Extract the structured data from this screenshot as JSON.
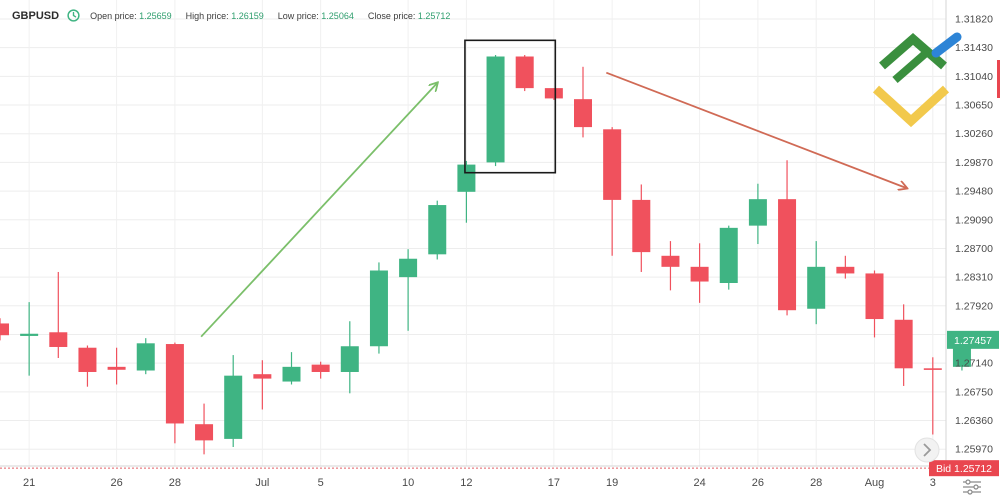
{
  "header": {
    "symbol": "GBPUSD",
    "open_label": "Open price:",
    "open_value": "1.25659",
    "high_label": "High price:",
    "high_value": "1.26159",
    "low_label": "Low price:",
    "low_value": "1.25064",
    "close_label": "Close price:",
    "close_value": "1.25712"
  },
  "price_badges": {
    "current": "1.27457",
    "bid": "Bid 1.25712"
  },
  "icons": [
    "clock-icon",
    "brand-logo-icon",
    "scroll-right-icon",
    "settings-icon"
  ],
  "colors": {
    "up": "#3fb483",
    "down": "#f0515d",
    "pattern_box": "#1a1a1a",
    "up_arrow": "#7bbf6a",
    "down_arrow": "#d06a55",
    "bid_line": "#e35f66"
  },
  "chart_data": {
    "type": "candlestick",
    "title": "GBPUSD",
    "y_ticks": [
      1.3182,
      1.3143,
      1.3104,
      1.3065,
      1.3026,
      1.2987,
      1.2948,
      1.2909,
      1.287,
      1.2831,
      1.2792,
      1.2753,
      1.2714,
      1.2675,
      1.2636,
      1.2597
    ],
    "x_ticks": [
      "21",
      "26",
      "28",
      "Jul",
      "5",
      "10",
      "12",
      "17",
      "19",
      "24",
      "26",
      "28",
      "Aug",
      "3"
    ],
    "ylim": [
      1.2555,
      1.3205
    ],
    "grid": true,
    "candles": [
      {
        "o": 1.2768,
        "h": 1.2775,
        "l": 1.2745,
        "c": 1.2752
      },
      {
        "o": 1.2751,
        "h": 1.2797,
        "l": 1.2697,
        "c": 1.2754
      },
      {
        "o": 1.2756,
        "h": 1.2838,
        "l": 1.2721,
        "c": 1.2736
      },
      {
        "o": 1.2735,
        "h": 1.2738,
        "l": 1.2682,
        "c": 1.2702
      },
      {
        "o": 1.2709,
        "h": 1.2735,
        "l": 1.2685,
        "c": 1.2705
      },
      {
        "o": 1.2704,
        "h": 1.2748,
        "l": 1.2699,
        "c": 1.2741
      },
      {
        "o": 1.274,
        "h": 1.2742,
        "l": 1.2605,
        "c": 1.2632
      },
      {
        "o": 1.2631,
        "h": 1.2659,
        "l": 1.259,
        "c": 1.2609
      },
      {
        "o": 1.2611,
        "h": 1.2725,
        "l": 1.26,
        "c": 1.2697
      },
      {
        "o": 1.2699,
        "h": 1.2718,
        "l": 1.2651,
        "c": 1.2693
      },
      {
        "o": 1.2689,
        "h": 1.2729,
        "l": 1.2685,
        "c": 1.2709
      },
      {
        "o": 1.2712,
        "h": 1.2716,
        "l": 1.2693,
        "c": 1.2702
      },
      {
        "o": 1.2702,
        "h": 1.2771,
        "l": 1.2673,
        "c": 1.2737
      },
      {
        "o": 1.2737,
        "h": 1.2851,
        "l": 1.2727,
        "c": 1.284
      },
      {
        "o": 1.2831,
        "h": 1.2869,
        "l": 1.2758,
        "c": 1.2856
      },
      {
        "o": 1.2862,
        "h": 1.2935,
        "l": 1.2855,
        "c": 1.2929
      },
      {
        "o": 1.2947,
        "h": 1.2989,
        "l": 1.2905,
        "c": 1.2984
      },
      {
        "o": 1.2987,
        "h": 1.3133,
        "l": 1.2982,
        "c": 1.3131
      },
      {
        "o": 1.3131,
        "h": 1.3133,
        "l": 1.3084,
        "c": 1.3088
      },
      {
        "o": 1.3088,
        "h": 1.3088,
        "l": 1.3072,
        "c": 1.3074
      },
      {
        "o": 1.3073,
        "h": 1.3117,
        "l": 1.3021,
        "c": 1.3035
      },
      {
        "o": 1.3032,
        "h": 1.3035,
        "l": 1.286,
        "c": 1.2936
      },
      {
        "o": 1.2936,
        "h": 1.2957,
        "l": 1.2838,
        "c": 1.2865
      },
      {
        "o": 1.286,
        "h": 1.288,
        "l": 1.2813,
        "c": 1.2845
      },
      {
        "o": 1.2845,
        "h": 1.2877,
        "l": 1.2796,
        "c": 1.2825
      },
      {
        "o": 1.2823,
        "h": 1.2901,
        "l": 1.2814,
        "c": 1.2898
      },
      {
        "o": 1.2901,
        "h": 1.2958,
        "l": 1.2876,
        "c": 1.2937
      },
      {
        "o": 1.2937,
        "h": 1.299,
        "l": 1.2779,
        "c": 1.2786
      },
      {
        "o": 1.2788,
        "h": 1.288,
        "l": 1.2767,
        "c": 1.2845
      },
      {
        "o": 1.2845,
        "h": 1.286,
        "l": 1.2829,
        "c": 1.2836
      },
      {
        "o": 1.2836,
        "h": 1.284,
        "l": 1.2749,
        "c": 1.2774
      },
      {
        "o": 1.2773,
        "h": 1.2794,
        "l": 1.2683,
        "c": 1.2707
      },
      {
        "o": 1.2707,
        "h": 1.2722,
        "l": 1.2617,
        "c": 1.2705
      },
      {
        "o": 1.2709,
        "h": 1.2748,
        "l": 1.2704,
        "c": 1.2745
      }
    ],
    "annotations": [
      {
        "type": "arrow",
        "from": {
          "i": 6.9,
          "p": 1.275
        },
        "to": {
          "i": 15.0,
          "p": 1.3095
        }
      },
      {
        "type": "arrow",
        "from": {
          "i": 20.8,
          "p": 1.3109
        },
        "to": {
          "i": 31.1,
          "p": 1.2952
        }
      },
      {
        "type": "box",
        "i_from": 15.95,
        "i_to": 19.05,
        "p_lo": 1.2973,
        "p_hi": 1.3153
      }
    ]
  }
}
